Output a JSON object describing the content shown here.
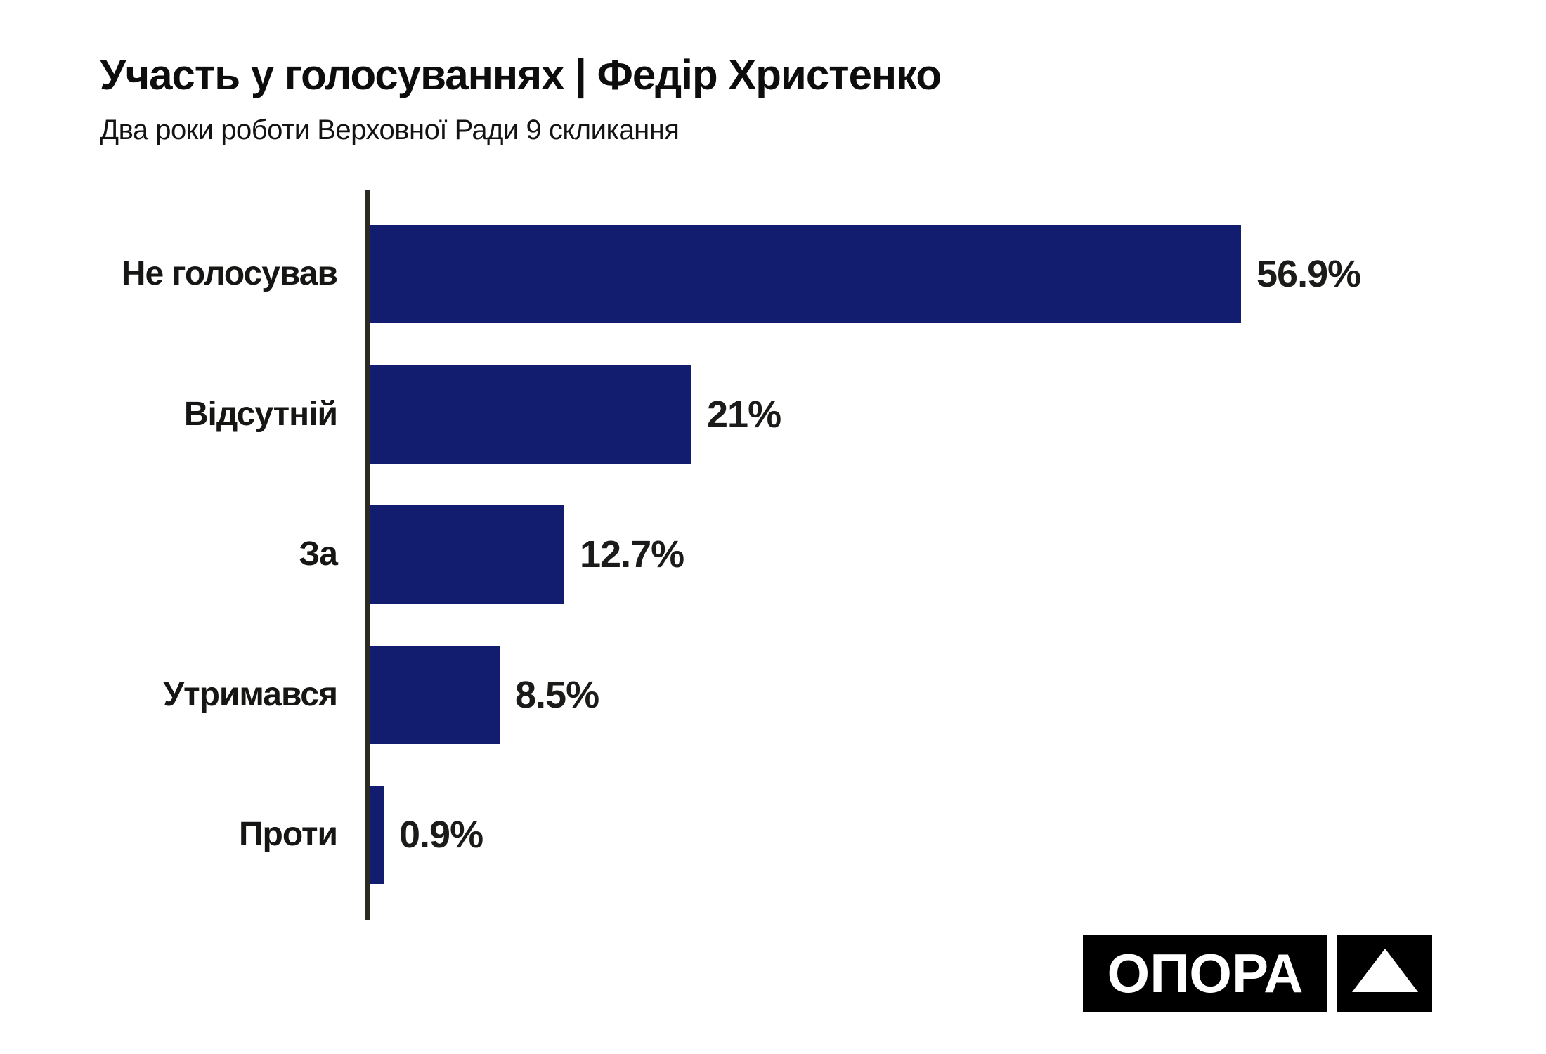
{
  "header": {
    "title": "Участь у голосуваннях | Федір Христенко",
    "subtitle": "Два роки роботи Верховної Ради 9 скликання"
  },
  "chart_data": {
    "type": "bar",
    "orientation": "horizontal",
    "title": "Участь у голосуваннях | Федір Христенко",
    "subtitle": "Два роки роботи Верховної Ради 9 скликання",
    "categories": [
      "Не голосував",
      "Відсутній",
      "За",
      "Утримався",
      "Проти"
    ],
    "values": [
      56.9,
      21,
      12.7,
      8.5,
      0.9
    ],
    "value_labels": [
      "56.9%",
      "21%",
      "12.7%",
      "8.5%",
      "0.9%"
    ],
    "xlabel": "",
    "ylabel": "",
    "xlim": [
      0,
      60
    ],
    "grid": false,
    "legend": false,
    "bar_color": "#131d70"
  },
  "logo": {
    "text": "ОПОРА",
    "icon": "triangle-icon"
  },
  "colors": {
    "bar": "#131d70",
    "axis": "#2b2b23",
    "text": "#161614",
    "logo_bg": "#000000",
    "background": "#ffffff"
  }
}
